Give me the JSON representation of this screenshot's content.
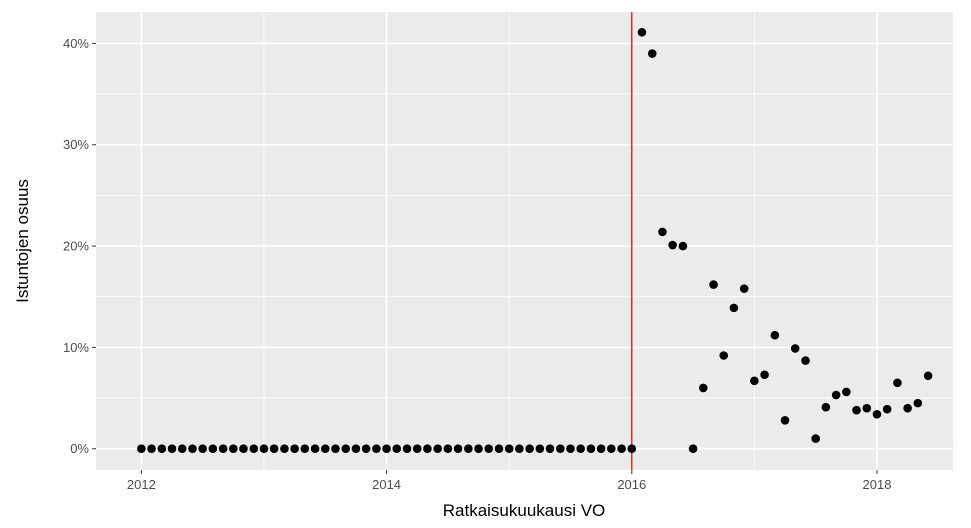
{
  "chart_data": {
    "type": "scatter",
    "xlabel": "Ratkaisukuukausi VO",
    "ylabel": "Istuntojen osuus",
    "x_ticks": [
      {
        "value": 2012,
        "label": "2012"
      },
      {
        "value": 2014,
        "label": "2014"
      },
      {
        "value": 2016,
        "label": "2016"
      },
      {
        "value": 2018,
        "label": "2018"
      }
    ],
    "y_ticks": [
      {
        "value": 0,
        "label": "0%"
      },
      {
        "value": 10,
        "label": "10%"
      },
      {
        "value": 20,
        "label": "20%"
      },
      {
        "value": 30,
        "label": "30%"
      },
      {
        "value": 40,
        "label": "40%"
      }
    ],
    "xlim": [
      2011.63,
      2018.62
    ],
    "ylim": [
      -2.1,
      43.1
    ],
    "y_unit": "%",
    "vline": {
      "x": 2016.0,
      "color": "#e41a1c"
    },
    "colors": {
      "panel": "#ebebeb",
      "grid": "#ffffff",
      "point": "#000000",
      "vline": "#e41a1c"
    },
    "grid": true,
    "legend": "none",
    "points": [
      {
        "x": 2012.0,
        "y": 0
      },
      {
        "x": 2012.083,
        "y": 0
      },
      {
        "x": 2012.167,
        "y": 0
      },
      {
        "x": 2012.25,
        "y": 0
      },
      {
        "x": 2012.333,
        "y": 0
      },
      {
        "x": 2012.417,
        "y": 0
      },
      {
        "x": 2012.5,
        "y": 0
      },
      {
        "x": 2012.583,
        "y": 0
      },
      {
        "x": 2012.667,
        "y": 0
      },
      {
        "x": 2012.75,
        "y": 0
      },
      {
        "x": 2012.833,
        "y": 0
      },
      {
        "x": 2012.917,
        "y": 0
      },
      {
        "x": 2013.0,
        "y": 0
      },
      {
        "x": 2013.083,
        "y": 0
      },
      {
        "x": 2013.167,
        "y": 0
      },
      {
        "x": 2013.25,
        "y": 0
      },
      {
        "x": 2013.333,
        "y": 0
      },
      {
        "x": 2013.417,
        "y": 0
      },
      {
        "x": 2013.5,
        "y": 0
      },
      {
        "x": 2013.583,
        "y": 0
      },
      {
        "x": 2013.667,
        "y": 0
      },
      {
        "x": 2013.75,
        "y": 0
      },
      {
        "x": 2013.833,
        "y": 0
      },
      {
        "x": 2013.917,
        "y": 0
      },
      {
        "x": 2014.0,
        "y": 0
      },
      {
        "x": 2014.083,
        "y": 0
      },
      {
        "x": 2014.167,
        "y": 0
      },
      {
        "x": 2014.25,
        "y": 0
      },
      {
        "x": 2014.333,
        "y": 0
      },
      {
        "x": 2014.417,
        "y": 0
      },
      {
        "x": 2014.5,
        "y": 0
      },
      {
        "x": 2014.583,
        "y": 0
      },
      {
        "x": 2014.667,
        "y": 0
      },
      {
        "x": 2014.75,
        "y": 0
      },
      {
        "x": 2014.833,
        "y": 0
      },
      {
        "x": 2014.917,
        "y": 0
      },
      {
        "x": 2015.0,
        "y": 0
      },
      {
        "x": 2015.083,
        "y": 0
      },
      {
        "x": 2015.167,
        "y": 0
      },
      {
        "x": 2015.25,
        "y": 0
      },
      {
        "x": 2015.333,
        "y": 0
      },
      {
        "x": 2015.417,
        "y": 0
      },
      {
        "x": 2015.5,
        "y": 0
      },
      {
        "x": 2015.583,
        "y": 0
      },
      {
        "x": 2015.667,
        "y": 0
      },
      {
        "x": 2015.75,
        "y": 0
      },
      {
        "x": 2015.833,
        "y": 0
      },
      {
        "x": 2015.917,
        "y": 0
      },
      {
        "x": 2016.0,
        "y": 0
      },
      {
        "x": 2016.083,
        "y": 41.1
      },
      {
        "x": 2016.167,
        "y": 39.0
      },
      {
        "x": 2016.25,
        "y": 21.4
      },
      {
        "x": 2016.333,
        "y": 20.1
      },
      {
        "x": 2016.417,
        "y": 20.0
      },
      {
        "x": 2016.5,
        "y": 0
      },
      {
        "x": 2016.583,
        "y": 6.0
      },
      {
        "x": 2016.667,
        "y": 16.2
      },
      {
        "x": 2016.75,
        "y": 9.2
      },
      {
        "x": 2016.833,
        "y": 13.9
      },
      {
        "x": 2016.917,
        "y": 15.8
      },
      {
        "x": 2017.0,
        "y": 6.7
      },
      {
        "x": 2017.083,
        "y": 7.3
      },
      {
        "x": 2017.167,
        "y": 11.2
      },
      {
        "x": 2017.25,
        "y": 2.8
      },
      {
        "x": 2017.333,
        "y": 9.9
      },
      {
        "x": 2017.417,
        "y": 8.7
      },
      {
        "x": 2017.5,
        "y": 1.0
      },
      {
        "x": 2017.583,
        "y": 4.1
      },
      {
        "x": 2017.667,
        "y": 5.3
      },
      {
        "x": 2017.75,
        "y": 5.6
      },
      {
        "x": 2017.833,
        "y": 3.8
      },
      {
        "x": 2017.917,
        "y": 4.0
      },
      {
        "x": 2018.0,
        "y": 3.4
      },
      {
        "x": 2018.083,
        "y": 3.9
      },
      {
        "x": 2018.167,
        "y": 6.5
      },
      {
        "x": 2018.25,
        "y": 4.0
      },
      {
        "x": 2018.333,
        "y": 4.5
      },
      {
        "x": 2018.417,
        "y": 7.2
      }
    ]
  }
}
